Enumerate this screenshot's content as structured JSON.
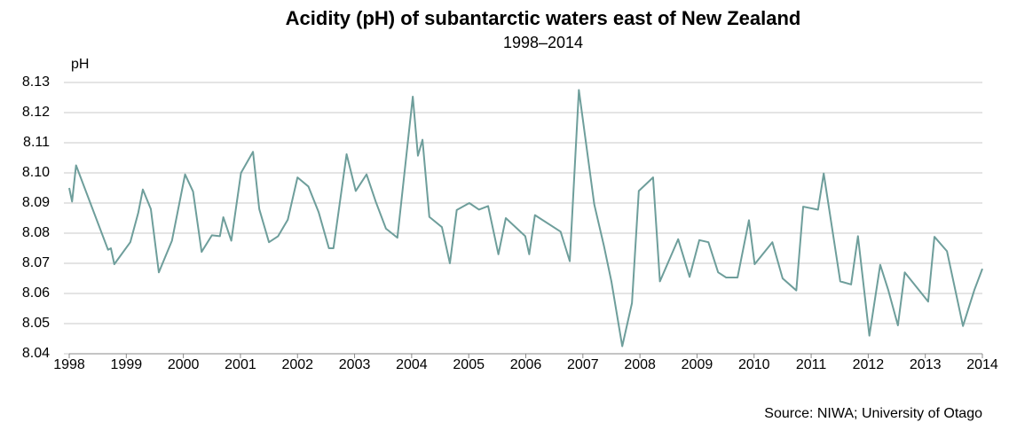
{
  "chart_data": {
    "type": "line",
    "title": "Acidity (pH) of subantarctic waters east of New Zealand",
    "subtitle": "1998–2014",
    "y_label": "pH",
    "source": "Source: NIWA; University of Otago",
    "x": [
      1998.0,
      1998.05,
      1998.12,
      1998.68,
      1998.73,
      1998.79,
      1999.07,
      1999.21,
      1999.29,
      1999.43,
      1999.57,
      1999.8,
      2000.03,
      2000.17,
      2000.32,
      2000.5,
      2000.64,
      2000.7,
      2000.84,
      2001.01,
      2001.22,
      2001.33,
      2001.5,
      2001.66,
      2001.83,
      2002.0,
      2002.19,
      2002.37,
      2002.55,
      2002.63,
      2002.86,
      2003.02,
      2003.21,
      2003.37,
      2003.55,
      2003.75,
      2004.02,
      2004.11,
      2004.19,
      2004.31,
      2004.53,
      2004.67,
      2004.79,
      2005.01,
      2005.18,
      2005.34,
      2005.52,
      2005.65,
      2005.99,
      2006.06,
      2006.16,
      2006.61,
      2006.77,
      2006.93,
      2007.2,
      2007.37,
      2007.5,
      2007.69,
      2007.86,
      2007.98,
      2008.23,
      2008.35,
      2008.67,
      2008.87,
      2009.04,
      2009.2,
      2009.37,
      2009.51,
      2009.71,
      2009.91,
      2010.01,
      2010.32,
      2010.5,
      2010.74,
      2010.86,
      2011.12,
      2011.22,
      2011.51,
      2011.7,
      2011.82,
      2012.02,
      2012.21,
      2012.35,
      2012.52,
      2012.64,
      2013.05,
      2013.16,
      2013.38,
      2013.66,
      2013.86,
      2014.0
    ],
    "series": [
      {
        "name": "pH",
        "color": "#6e9e9b",
        "values": [
          8.095,
          8.0905,
          8.1025,
          8.0745,
          8.075,
          8.0697,
          8.077,
          8.0868,
          8.0945,
          8.088,
          8.067,
          8.0775,
          8.0995,
          8.0938,
          8.0738,
          8.0793,
          8.079,
          8.0853,
          8.0775,
          8.1,
          8.107,
          8.088,
          8.077,
          8.079,
          8.0845,
          8.0985,
          8.0955,
          8.087,
          8.075,
          8.075,
          8.1062,
          8.094,
          8.0995,
          8.0905,
          8.0815,
          8.0785,
          8.1253,
          8.1057,
          8.111,
          8.0854,
          8.082,
          8.07,
          8.0877,
          8.09,
          8.0878,
          8.089,
          8.073,
          8.085,
          8.079,
          8.073,
          8.086,
          8.0805,
          8.0707,
          8.1275,
          8.0895,
          8.0757,
          8.064,
          8.0425,
          8.0568,
          8.094,
          8.0985,
          8.064,
          8.078,
          8.0655,
          8.0777,
          8.077,
          8.067,
          8.0653,
          8.0653,
          8.0843,
          8.0697,
          8.077,
          8.065,
          8.061,
          8.0888,
          8.0878,
          8.0998,
          8.064,
          8.063,
          8.079,
          8.046,
          8.0695,
          8.0612,
          8.0494,
          8.067,
          8.0573,
          8.0788,
          8.074,
          8.0492,
          8.0612,
          8.0682
        ]
      }
    ],
    "xlim": [
      1998,
      2014
    ],
    "xticks": [
      1998,
      1999,
      2000,
      2001,
      2002,
      2003,
      2004,
      2005,
      2006,
      2007,
      2008,
      2009,
      2010,
      2011,
      2012,
      2013,
      2014
    ],
    "ylim": [
      8.04,
      8.13
    ],
    "yticks": [
      {
        "value": 8.04,
        "label": "8.04"
      },
      8.05,
      8.06,
      8.07,
      8.08,
      8.09,
      {
        "value": 8.1,
        "label": "8.10"
      },
      8.11,
      8.12,
      8.13
    ],
    "grid": true
  }
}
